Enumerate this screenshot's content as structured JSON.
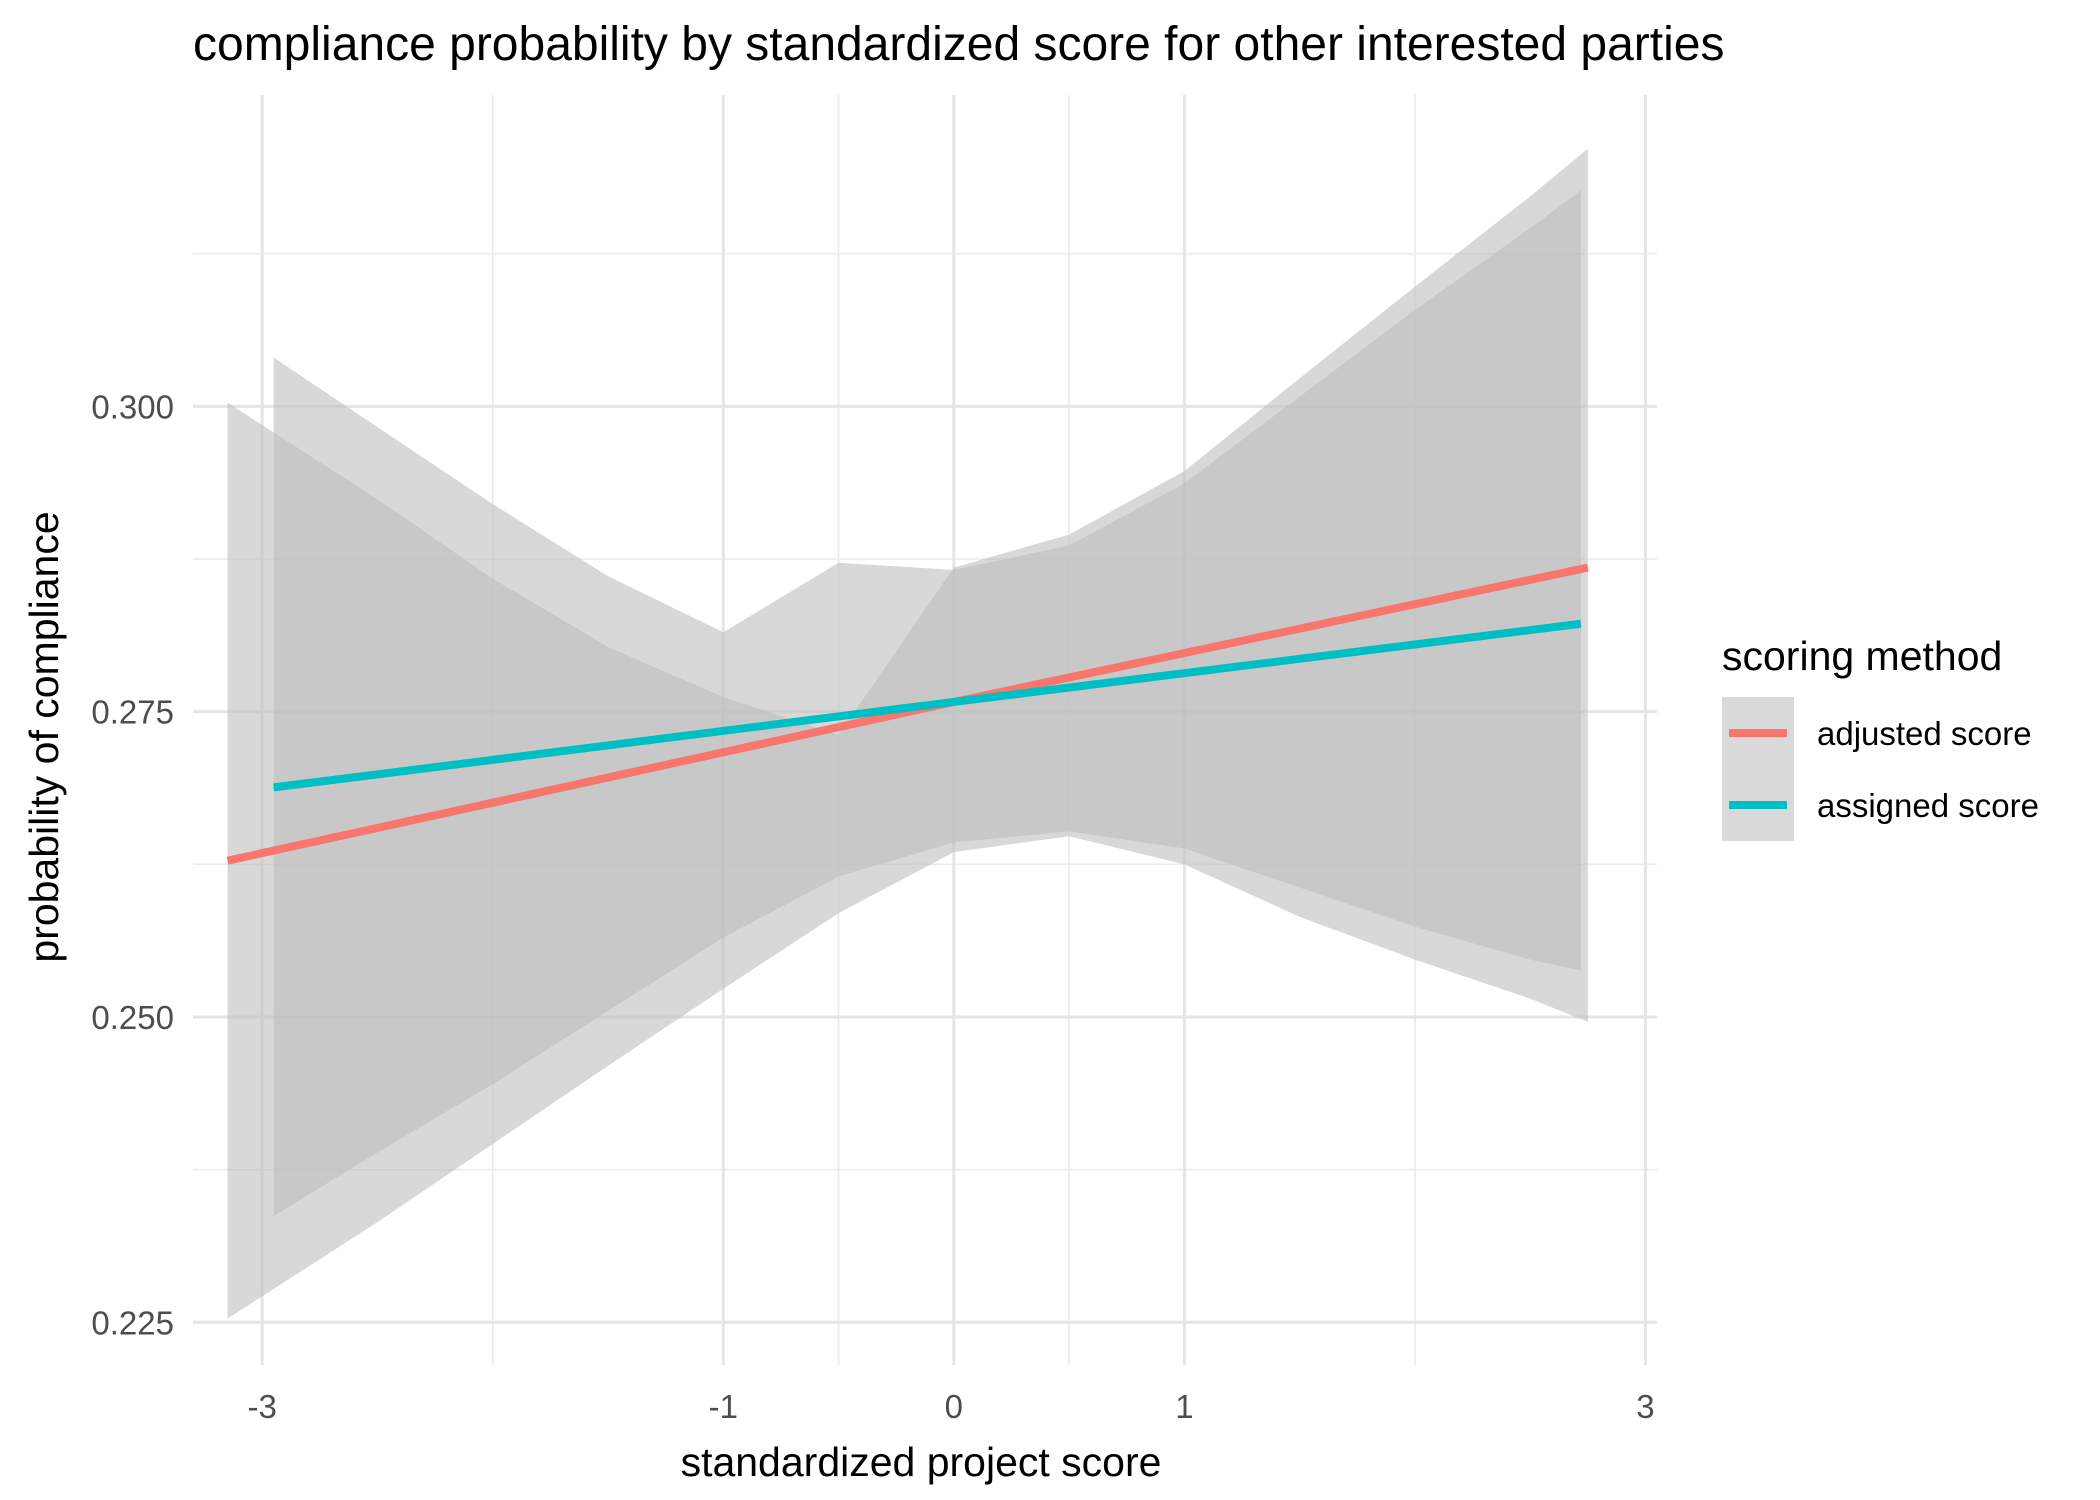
{
  "chart_data": {
    "type": "line",
    "title": "compliance probability by standardized score for other interested parties",
    "xlabel": "standardized project score",
    "ylabel": "probability of compliance",
    "xlim": [
      -3.3,
      3.05
    ],
    "ylim": [
      0.2215,
      0.3255
    ],
    "x_ticks": [
      -3,
      -1,
      0,
      1,
      3
    ],
    "x_tick_labels": [
      "-3",
      "-1",
      "0",
      "1",
      "3"
    ],
    "x_minor_grid": [
      -2,
      -0.5,
      0.5,
      2
    ],
    "y_ticks": [
      0.225,
      0.25,
      0.275,
      0.3
    ],
    "y_tick_labels": [
      "0.225",
      "0.250",
      "0.275",
      "0.300"
    ],
    "y_minor_grid": [
      0.2375,
      0.2625,
      0.2875,
      0.3125
    ],
    "grid": true,
    "legend_title": "scoring method",
    "legend_position": "right",
    "ribbon_color": "#bebebe",
    "series": [
      {
        "name": "adjusted score",
        "color": "#f8766d",
        "x": [
          -3.15,
          0,
          2.75
        ],
        "y": [
          0.2628,
          0.2758,
          0.2868
        ],
        "ribbon": {
          "x": [
            -3.15,
            -2.5,
            -2.0,
            -1.5,
            -1.0,
            -0.5,
            0.0,
            0.5,
            1.0,
            1.5,
            2.0,
            2.5,
            2.75
          ],
          "lower": [
            0.2253,
            0.2332,
            0.2396,
            0.246,
            0.2523,
            0.2585,
            0.2635,
            0.2648,
            0.2625,
            0.2582,
            0.2547,
            0.2515,
            0.2496
          ],
          "upper": [
            0.3003,
            0.2924,
            0.2859,
            0.2803,
            0.2762,
            0.2731,
            0.2868,
            0.2895,
            0.2947,
            0.3023,
            0.3098,
            0.3172,
            0.3211
          ]
        }
      },
      {
        "name": "assigned score",
        "color": "#00bfc4",
        "x": [
          -2.95,
          0,
          2.72
        ],
        "y": [
          0.2688,
          0.2758,
          0.2822
        ],
        "ribbon": {
          "x": [
            -2.95,
            -2.5,
            -2.0,
            -1.5,
            -1.0,
            -0.5,
            0.0,
            0.5,
            1.0,
            1.5,
            2.0,
            2.5,
            2.72
          ],
          "lower": [
            0.2337,
            0.2389,
            0.2445,
            0.2505,
            0.2565,
            0.2615,
            0.2643,
            0.2652,
            0.2638,
            0.2606,
            0.2574,
            0.2547,
            0.2538
          ],
          "upper": [
            0.304,
            0.2983,
            0.292,
            0.2861,
            0.2815,
            0.2872,
            0.2866,
            0.2886,
            0.2937,
            0.3008,
            0.3079,
            0.3146,
            0.3177
          ]
        }
      }
    ]
  }
}
